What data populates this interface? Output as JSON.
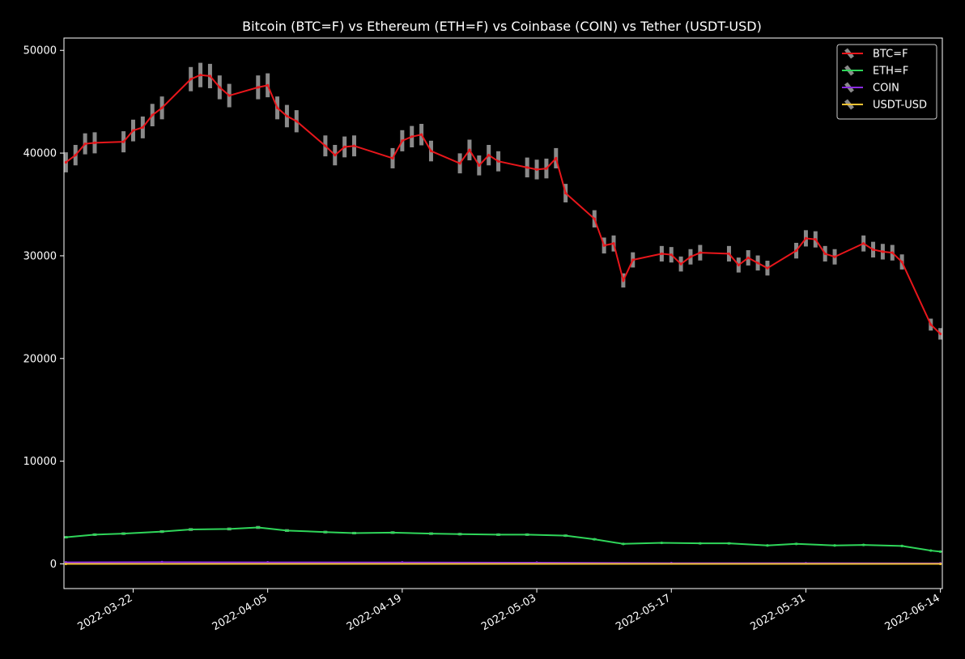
{
  "chart_data": {
    "type": "line",
    "title": "Bitcoin (BTC=F) vs Ethereum (ETH=F) vs Coinbase (COIN) vs Tether (USDT-USD)",
    "xlabel": "",
    "ylabel": "",
    "x_range": [
      "2022-03-15",
      "2022-06-14"
    ],
    "ylim": [
      -2400,
      51200
    ],
    "y_ticks": [
      0,
      10000,
      20000,
      30000,
      40000,
      50000
    ],
    "y_tick_labels": [
      "0",
      "10000",
      "20000",
      "30000",
      "40000",
      "50000"
    ],
    "x_ticks": [
      "2022-03-22",
      "2022-04-05",
      "2022-04-19",
      "2022-05-03",
      "2022-05-17",
      "2022-05-31",
      "2022-06-14"
    ],
    "grid": false,
    "background": "#000000",
    "legend_position": "top-right",
    "series": [
      {
        "name": "BTC=F",
        "color": "#e8161b",
        "error_color": "#8a8a8a",
        "points": [
          [
            "2022-03-15",
            39100
          ],
          [
            "2022-03-16",
            39800
          ],
          [
            "2022-03-17",
            40900
          ],
          [
            "2022-03-18",
            41000
          ],
          [
            "2022-03-21",
            41100
          ],
          [
            "2022-03-22",
            42200
          ],
          [
            "2022-03-23",
            42500
          ],
          [
            "2022-03-24",
            43700
          ],
          [
            "2022-03-25",
            44400
          ],
          [
            "2022-03-28",
            47200
          ],
          [
            "2022-03-29",
            47600
          ],
          [
            "2022-03-30",
            47500
          ],
          [
            "2022-03-31",
            46400
          ],
          [
            "2022-04-01",
            45600
          ],
          [
            "2022-04-04",
            46400
          ],
          [
            "2022-04-05",
            46600
          ],
          [
            "2022-04-06",
            44400
          ],
          [
            "2022-04-07",
            43600
          ],
          [
            "2022-04-08",
            43100
          ],
          [
            "2022-04-11",
            40700
          ],
          [
            "2022-04-12",
            39800
          ],
          [
            "2022-04-13",
            40600
          ],
          [
            "2022-04-14",
            40700
          ],
          [
            "2022-04-18",
            39500
          ],
          [
            "2022-04-19",
            41200
          ],
          [
            "2022-04-20",
            41600
          ],
          [
            "2022-04-21",
            41800
          ],
          [
            "2022-04-22",
            40200
          ],
          [
            "2022-04-25",
            39000
          ],
          [
            "2022-04-26",
            40300
          ],
          [
            "2022-04-27",
            38800
          ],
          [
            "2022-04-28",
            39800
          ],
          [
            "2022-04-29",
            39200
          ],
          [
            "2022-05-02",
            38600
          ],
          [
            "2022-05-03",
            38400
          ],
          [
            "2022-05-04",
            38500
          ],
          [
            "2022-05-05",
            39500
          ],
          [
            "2022-05-06",
            36100
          ],
          [
            "2022-05-09",
            33600
          ],
          [
            "2022-05-10",
            31000
          ],
          [
            "2022-05-11",
            31200
          ],
          [
            "2022-05-12",
            27600
          ],
          [
            "2022-05-13",
            29600
          ],
          [
            "2022-05-16",
            30200
          ],
          [
            "2022-05-17",
            30100
          ],
          [
            "2022-05-18",
            29200
          ],
          [
            "2022-05-19",
            29900
          ],
          [
            "2022-05-20",
            30300
          ],
          [
            "2022-05-23",
            30200
          ],
          [
            "2022-05-24",
            29100
          ],
          [
            "2022-05-25",
            29800
          ],
          [
            "2022-05-26",
            29300
          ],
          [
            "2022-05-27",
            28800
          ],
          [
            "2022-05-30",
            30500
          ],
          [
            "2022-05-31",
            31700
          ],
          [
            "2022-06-01",
            31600
          ],
          [
            "2022-06-02",
            30200
          ],
          [
            "2022-06-03",
            29900
          ],
          [
            "2022-06-06",
            31200
          ],
          [
            "2022-06-07",
            30600
          ],
          [
            "2022-06-08",
            30400
          ],
          [
            "2022-06-09",
            30300
          ],
          [
            "2022-06-10",
            29400
          ],
          [
            "2022-06-13",
            23300
          ],
          [
            "2022-06-14",
            22400
          ]
        ]
      },
      {
        "name": "ETH=F",
        "color": "#2fd65a",
        "error_color": "#8a8a8a",
        "points": [
          [
            "2022-03-15",
            2600
          ],
          [
            "2022-03-18",
            2850
          ],
          [
            "2022-03-21",
            2950
          ],
          [
            "2022-03-25",
            3150
          ],
          [
            "2022-03-28",
            3350
          ],
          [
            "2022-04-01",
            3400
          ],
          [
            "2022-04-04",
            3550
          ],
          [
            "2022-04-07",
            3250
          ],
          [
            "2022-04-11",
            3100
          ],
          [
            "2022-04-14",
            3000
          ],
          [
            "2022-04-18",
            3050
          ],
          [
            "2022-04-22",
            2950
          ],
          [
            "2022-04-25",
            2900
          ],
          [
            "2022-04-29",
            2850
          ],
          [
            "2022-05-02",
            2850
          ],
          [
            "2022-05-06",
            2750
          ],
          [
            "2022-05-09",
            2400
          ],
          [
            "2022-05-12",
            1950
          ],
          [
            "2022-05-16",
            2050
          ],
          [
            "2022-05-20",
            2000
          ],
          [
            "2022-05-23",
            2000
          ],
          [
            "2022-05-27",
            1800
          ],
          [
            "2022-05-30",
            1950
          ],
          [
            "2022-06-03",
            1800
          ],
          [
            "2022-06-06",
            1850
          ],
          [
            "2022-06-10",
            1750
          ],
          [
            "2022-06-13",
            1300
          ],
          [
            "2022-06-14",
            1200
          ]
        ]
      },
      {
        "name": "COIN",
        "color": "#8a2be2",
        "error_color": "#8a8a8a",
        "points": [
          [
            "2022-03-15",
            150
          ],
          [
            "2022-03-25",
            170
          ],
          [
            "2022-04-05",
            155
          ],
          [
            "2022-04-19",
            145
          ],
          [
            "2022-05-03",
            120
          ],
          [
            "2022-05-17",
            75
          ],
          [
            "2022-05-31",
            70
          ],
          [
            "2022-06-14",
            55
          ]
        ]
      },
      {
        "name": "USDT-USD",
        "color": "#f2c233",
        "error_color": "#8a8a8a",
        "points": [
          [
            "2022-03-15",
            1
          ],
          [
            "2022-06-14",
            1
          ]
        ]
      }
    ]
  }
}
